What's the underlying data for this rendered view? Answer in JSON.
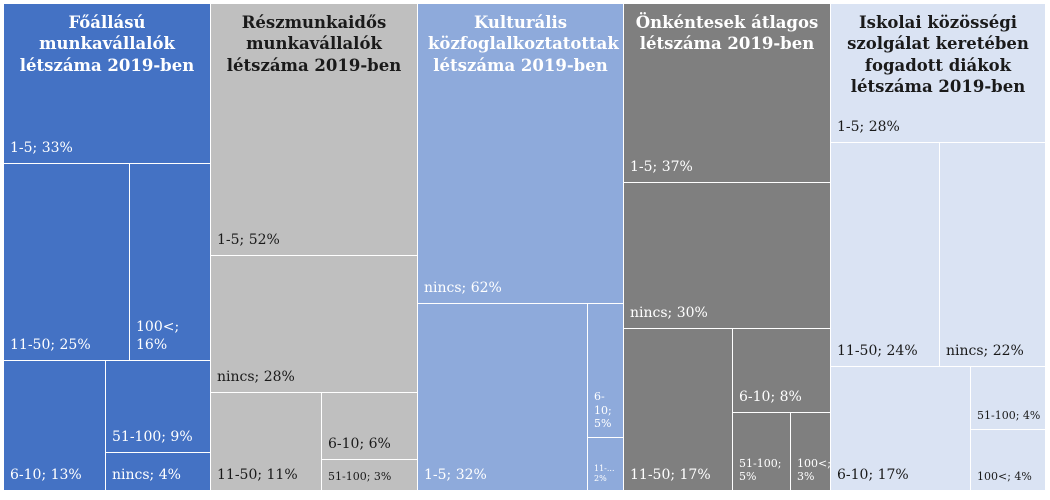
{
  "chart_data": {
    "type": "treemap",
    "groups": [
      {
        "title": "Főállású munkavállalók létszáma 2019-ben",
        "color": "#4472c4",
        "items": [
          {
            "label": "1-5; 33%",
            "value": 33
          },
          {
            "label": "11-50; 25%",
            "value": 25
          },
          {
            "label": "100<; 16%",
            "value": 16
          },
          {
            "label": "6-10; 13%",
            "value": 13
          },
          {
            "label": "51-100; 9%",
            "value": 9
          },
          {
            "label": "nincs; 4%",
            "value": 4
          }
        ]
      },
      {
        "title": "Részmunkaidős munkavállalók létszáma 2019-ben",
        "color": "#bfbfbf",
        "items": [
          {
            "label": "1-5; 52%",
            "value": 52
          },
          {
            "label": "nincs; 28%",
            "value": 28
          },
          {
            "label": "11-50; 11%",
            "value": 11
          },
          {
            "label": "6-10; 6%",
            "value": 6
          },
          {
            "label": "51-100; 3%",
            "value": 3
          }
        ]
      },
      {
        "title": "Kulturális közfoglalkoztatottak létszáma 2019-ben",
        "color": "#8eaadb",
        "items": [
          {
            "label": "nincs; 62%",
            "value": 62
          },
          {
            "label": "1-5; 32%",
            "value": 32
          },
          {
            "label": "6-10; 5%",
            "value": 5
          },
          {
            "label": "11-... 2%",
            "value": 2
          }
        ]
      },
      {
        "title": "Önkéntesek átlagos létszáma 2019-ben",
        "color": "#7f7f7f",
        "items": [
          {
            "label": "1-5; 37%",
            "value": 37
          },
          {
            "label": "nincs; 30%",
            "value": 30
          },
          {
            "label": "11-50; 17%",
            "value": 17
          },
          {
            "label": "6-10; 8%",
            "value": 8
          },
          {
            "label": "51-100; 5%",
            "value": 5
          },
          {
            "label": "100<; 3%",
            "value": 3
          }
        ]
      },
      {
        "title": "Iskolai közösségi szolgálat keretében fogadott diákok létszáma 2019-ben",
        "color": "#dae3f3",
        "items": [
          {
            "label": "1-5; 28%",
            "value": 28
          },
          {
            "label": "11-50; 24%",
            "value": 24
          },
          {
            "label": "nincs; 22%",
            "value": 22
          },
          {
            "label": "6-10; 17%",
            "value": 17
          },
          {
            "label": "51-100; 4%",
            "value": 4
          },
          {
            "label": "100<; 4%",
            "value": 4
          }
        ]
      }
    ]
  }
}
